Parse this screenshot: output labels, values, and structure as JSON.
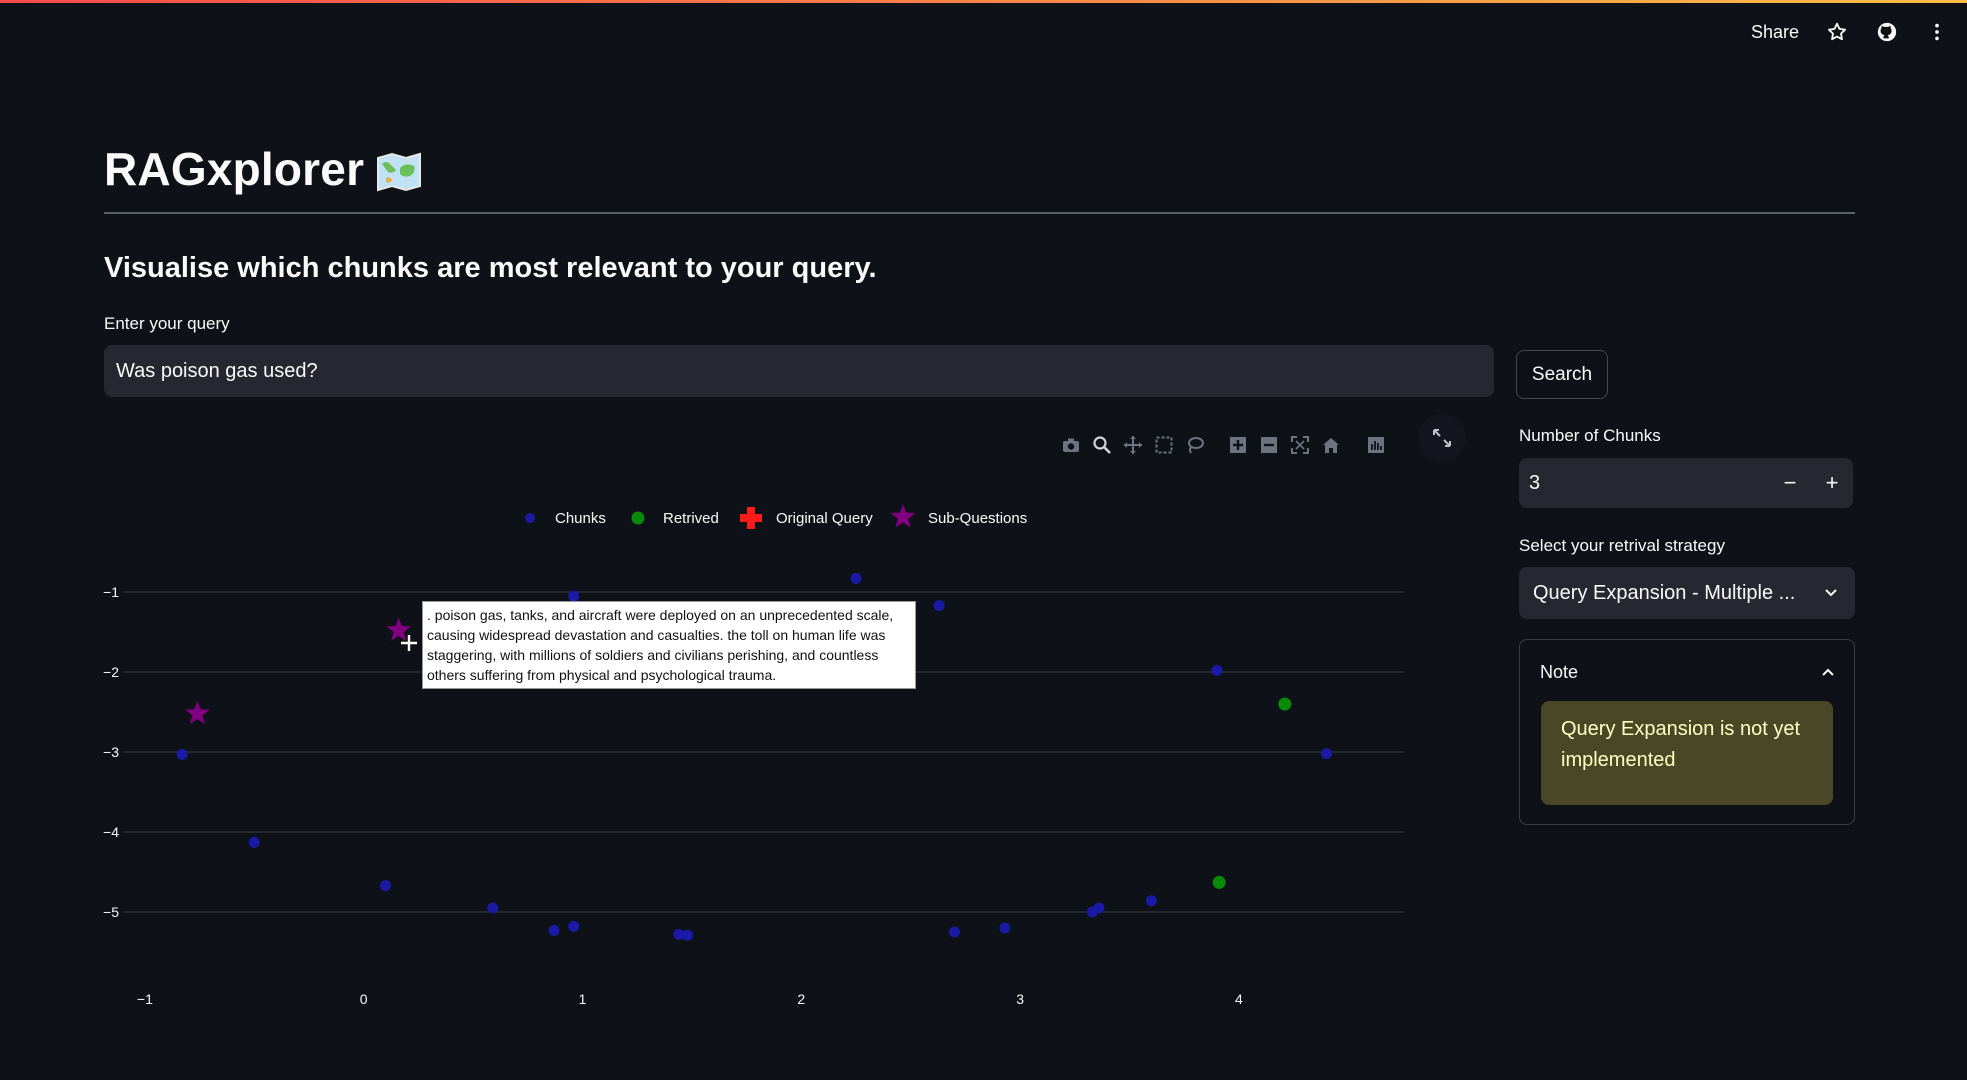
{
  "topbar": {
    "share_label": "Share",
    "icons": [
      "star-icon",
      "github-icon",
      "more-vert-icon"
    ]
  },
  "app": {
    "title": "RAGxplorer",
    "title_emoji": "world-map-icon",
    "subtitle": "Visualise which chunks are most relevant to your query."
  },
  "query": {
    "label": "Enter your query",
    "value": "Was poison gas used?"
  },
  "search": {
    "label": "Search"
  },
  "chunks": {
    "label": "Number of Chunks",
    "value": "3",
    "minus": "−",
    "plus": "+"
  },
  "strategy": {
    "label": "Select your retrival strategy",
    "selected": "Query Expansion - Multiple ..."
  },
  "note": {
    "title": "Note",
    "message": "Query Expansion is not yet implemented"
  },
  "modebar": [
    "camera-icon",
    "zoom-icon",
    "pan-icon",
    "box-select-icon",
    "lasso-select-icon",
    "zoom-in-icon",
    "zoom-out-icon",
    "autoscale-icon",
    "reset-axes-icon",
    "plotly-logo-icon"
  ],
  "tooltip": {
    "text": ". poison gas, tanks, and aircraft were deployed on an unprecedented scale, causing widespread devastation and casualties. the toll on human life was staggering, with millions of soldiers and civilians perishing, and countless others suffering from physical and psychological trauma."
  },
  "colors": {
    "background": "#0e1117",
    "chunks": "#1a1aa6",
    "retrieved": "#0a8a0a",
    "original_query": "#ff1a1a",
    "sub_questions": "#800080",
    "note_bg": "#4a4727"
  },
  "chart_data": {
    "type": "scatter",
    "title": "",
    "xlabel": "",
    "ylabel": "",
    "xlim": [
      -1.1,
      4.75
    ],
    "ylim": [
      -5.55,
      -0.7
    ],
    "x_ticks": [
      -1,
      0,
      1,
      2,
      3,
      4
    ],
    "y_ticks": [
      -1,
      -2,
      -3,
      -4,
      -5
    ],
    "grid": true,
    "legend_position": "top-center",
    "legend": [
      "Chunks",
      "Retrived",
      "Original Query",
      "Sub-Questions"
    ],
    "series": [
      {
        "name": "Chunks",
        "marker": "circle",
        "color": "#1a1aa6",
        "x": [
          -0.83,
          -0.5,
          0.1,
          0.59,
          0.87,
          0.96,
          1.44,
          1.48,
          0.96,
          2.25,
          2.63,
          2.7,
          2.93,
          3.33,
          3.36,
          3.6,
          3.9,
          4.4
        ],
        "y": [
          -3.03,
          -4.13,
          -4.67,
          -4.95,
          -5.23,
          -5.18,
          -5.28,
          -5.29,
          -1.05,
          -0.83,
          -1.17,
          -5.25,
          -5.2,
          -5.0,
          -4.95,
          -4.86,
          -1.98,
          -3.02
        ]
      },
      {
        "name": "Retrived",
        "marker": "circle",
        "color": "#0a8a0a",
        "x": [
          4.21,
          3.91
        ],
        "y": [
          -2.4,
          -4.63
        ]
      },
      {
        "name": "Original Query",
        "marker": "cross",
        "color": "#ff1a1a",
        "x": [],
        "y": []
      },
      {
        "name": "Sub-Questions",
        "marker": "star",
        "color": "#800080",
        "x": [
          -0.76,
          0.16
        ],
        "y": [
          -2.52,
          -1.48
        ]
      }
    ]
  }
}
